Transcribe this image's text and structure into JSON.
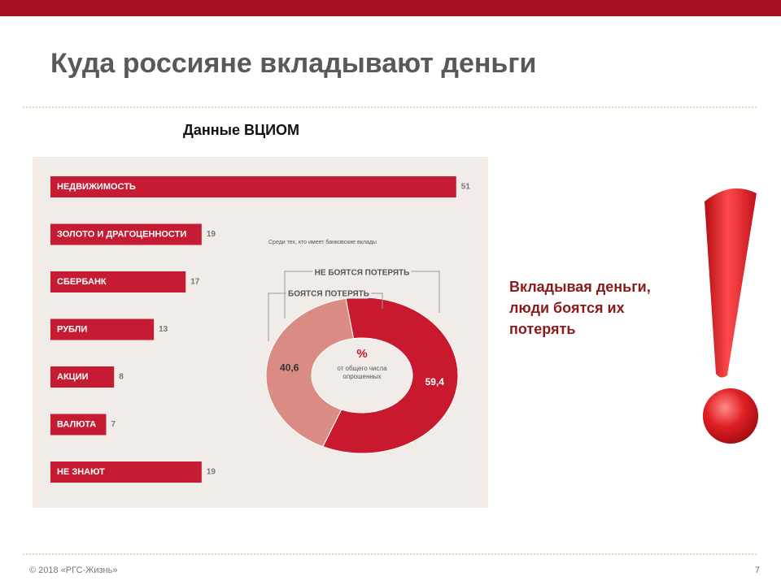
{
  "title": "Куда россияне вкладывают деньги",
  "source": "Данные ВЦИОМ",
  "note": [
    "Вкладывая деньги,",
    "люди боятся их",
    "потерять"
  ],
  "footer": "© 2018 «РГС-Жизнь»",
  "page": 7,
  "chart_data": [
    {
      "type": "bar",
      "orientation": "horizontal",
      "color": "#c51c33",
      "categories": [
        "НЕДВИЖИМОСТЬ",
        "ЗОЛОТО И ДРАГОЦЕННОСТИ",
        "СБЕРБАНК",
        "РУБЛИ",
        "АКЦИИ",
        "ВАЛЮТА",
        "НЕ ЗНАЮТ"
      ],
      "values": [
        51,
        19,
        17,
        13,
        8,
        7,
        19
      ]
    },
    {
      "type": "pie",
      "subtitle": "Среди тех, кто имеет банковские вклады",
      "categories": [
        "НЕ БОЯТСЯ ПОТЕРЯТЬ",
        "БОЯТСЯ ПОТЕРЯТЬ"
      ],
      "values": [
        59.4,
        40.6
      ],
      "value_labels": [
        "59,4",
        "40,6"
      ],
      "colors": [
        "#c8192f",
        "#d98b84"
      ],
      "center_label": "%",
      "center_note": [
        "от общего числа",
        "опрошенных"
      ]
    }
  ]
}
